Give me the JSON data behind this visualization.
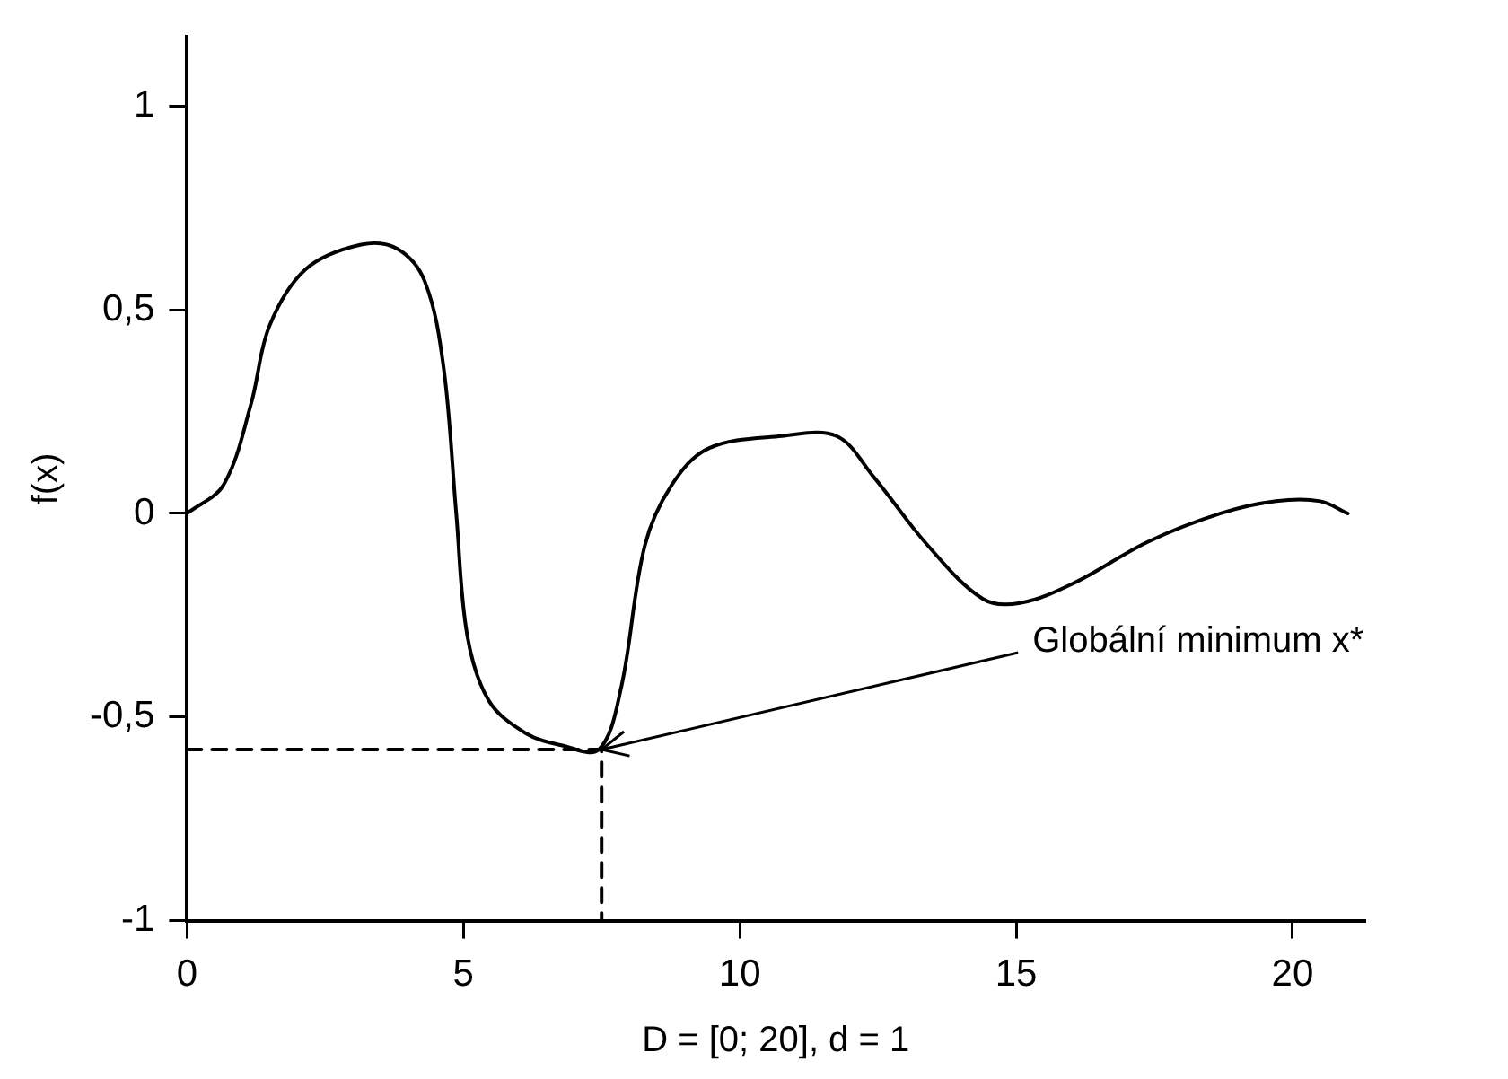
{
  "chart_data": {
    "type": "line",
    "xlabel": "D = [0; 20], d = 1",
    "ylabel": "f(x)",
    "xlim": [
      0,
      21.3
    ],
    "ylim": [
      -1,
      1.17
    ],
    "xticks": [
      0,
      5,
      10,
      15,
      20
    ],
    "yticks": [
      {
        "value": -1,
        "label": "-1"
      },
      {
        "value": -0.5,
        "label": "-0,5"
      },
      0,
      {
        "value": 0.5,
        "label": "0,5"
      },
      1
    ],
    "grid": false,
    "legend": false,
    "marker": "none",
    "series": [
      {
        "color": "#000000",
        "line_style": "solid",
        "x": [
          0,
          0.66,
          1.16,
          1.49,
          2.15,
          3.15,
          3.8,
          4.3,
          4.64,
          4.87,
          5.07,
          5.46,
          6.13,
          6.79,
          7.45,
          7.85,
          8.28,
          8.77,
          9.44,
          10.76,
          11.75,
          12.42,
          13.41,
          14.4,
          15.07,
          16.06,
          17.38,
          18.7,
          19.7,
          20.5,
          21
        ],
        "values": [
          0,
          0.07,
          0.27,
          0.46,
          0.6,
          0.66,
          0.65,
          0.57,
          0.36,
          0,
          -0.3,
          -0.46,
          -0.54,
          -0.57,
          -0.58,
          -0.43,
          -0.08,
          0.07,
          0.16,
          0.19,
          0.19,
          0.09,
          -0.08,
          -0.21,
          -0.22,
          -0.17,
          -0.07,
          0,
          0.03,
          0.03,
          0
        ]
      },
      {
        "color": "#000000",
        "line_style": "dashed",
        "x": [
          0,
          7.5,
          7.5
        ],
        "values": [
          -0.58,
          -0.58,
          -1
        ]
      }
    ],
    "annotations": [
      {
        "text": "Globální minimum x*",
        "x": 7.5,
        "y": -0.58
      }
    ]
  }
}
